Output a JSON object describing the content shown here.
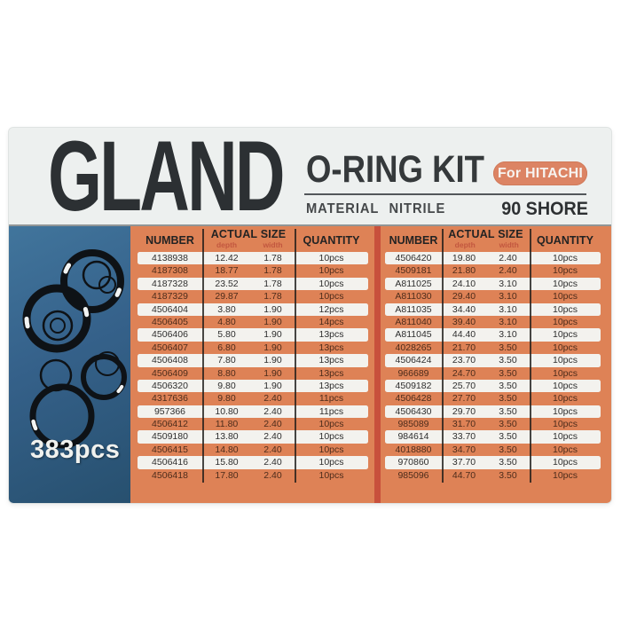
{
  "header": {
    "brand": "GLAND",
    "product": "O-RING KIT",
    "badge": "For HITACHI",
    "material": "MATERIAL NITRILE",
    "shore": "90 SHORE"
  },
  "panel": {
    "count": "383pcs"
  },
  "columns": {
    "number": "NUMBER",
    "actual_size": "ACTUAL SIZE",
    "depth": "depth",
    "width": "width",
    "quantity": "QUANTITY"
  },
  "left_table": {
    "rows": [
      [
        "4138938",
        "12.42",
        "1.78",
        "10pcs"
      ],
      [
        "4187308",
        "18.77",
        "1.78",
        "10pcs"
      ],
      [
        "4187328",
        "23.52",
        "1.78",
        "10pcs"
      ],
      [
        "4187329",
        "29.87",
        "1.78",
        "10pcs"
      ],
      [
        "4506404",
        "3.80",
        "1.90",
        "12pcs"
      ],
      [
        "4506405",
        "4.80",
        "1.90",
        "14pcs"
      ],
      [
        "4506406",
        "5.80",
        "1.90",
        "13pcs"
      ],
      [
        "4506407",
        "6.80",
        "1.90",
        "13pcs"
      ],
      [
        "4506408",
        "7.80",
        "1.90",
        "13pcs"
      ],
      [
        "4506409",
        "8.80",
        "1.90",
        "13pcs"
      ],
      [
        "4506320",
        "9.80",
        "1.90",
        "13pcs"
      ],
      [
        "4317636",
        "9.80",
        "2.40",
        "11pcs"
      ],
      [
        "957366",
        "10.80",
        "2.40",
        "11pcs"
      ],
      [
        "4506412",
        "11.80",
        "2.40",
        "10pcs"
      ],
      [
        "4509180",
        "13.80",
        "2.40",
        "10pcs"
      ],
      [
        "4506415",
        "14.80",
        "2.40",
        "10pcs"
      ],
      [
        "4506416",
        "15.80",
        "2.40",
        "10pcs"
      ],
      [
        "4506418",
        "17.80",
        "2.40",
        "10pcs"
      ]
    ]
  },
  "right_table": {
    "rows": [
      [
        "4506420",
        "19.80",
        "2.40",
        "10pcs"
      ],
      [
        "4509181",
        "21.80",
        "2.40",
        "10pcs"
      ],
      [
        "A811025",
        "24.10",
        "3.10",
        "10pcs"
      ],
      [
        "A811030",
        "29.40",
        "3.10",
        "10pcs"
      ],
      [
        "A811035",
        "34.40",
        "3.10",
        "10pcs"
      ],
      [
        "A811040",
        "39.40",
        "3.10",
        "10pcs"
      ],
      [
        "A811045",
        "44.40",
        "3.10",
        "10pcs"
      ],
      [
        "4028265",
        "21.70",
        "3.50",
        "10pcs"
      ],
      [
        "4506424",
        "23.70",
        "3.50",
        "10pcs"
      ],
      [
        "966689",
        "24.70",
        "3.50",
        "10pcs"
      ],
      [
        "4509182",
        "25.70",
        "3.50",
        "10pcs"
      ],
      [
        "4506428",
        "27.70",
        "3.50",
        "10pcs"
      ],
      [
        "4506430",
        "29.70",
        "3.50",
        "10pcs"
      ],
      [
        "985089",
        "31.70",
        "3.50",
        "10pcs"
      ],
      [
        "984614",
        "33.70",
        "3.50",
        "10pcs"
      ],
      [
        "4018880",
        "34.70",
        "3.50",
        "10pcs"
      ],
      [
        "970860",
        "37.70",
        "3.50",
        "10pcs"
      ],
      [
        "985096",
        "44.70",
        "3.50",
        "10pcs"
      ]
    ]
  },
  "colors": {
    "table_orange": "#de8256",
    "row_white": "#f3f2ee",
    "red_divider": "#c8503c",
    "panel_blue_top": "#41759c",
    "panel_blue_bottom": "#27506f",
    "badge_orange": "#dc8464",
    "box_background": "#edf0ef",
    "text_dark": "#2c3033",
    "subheader_red": "#c2573f"
  }
}
